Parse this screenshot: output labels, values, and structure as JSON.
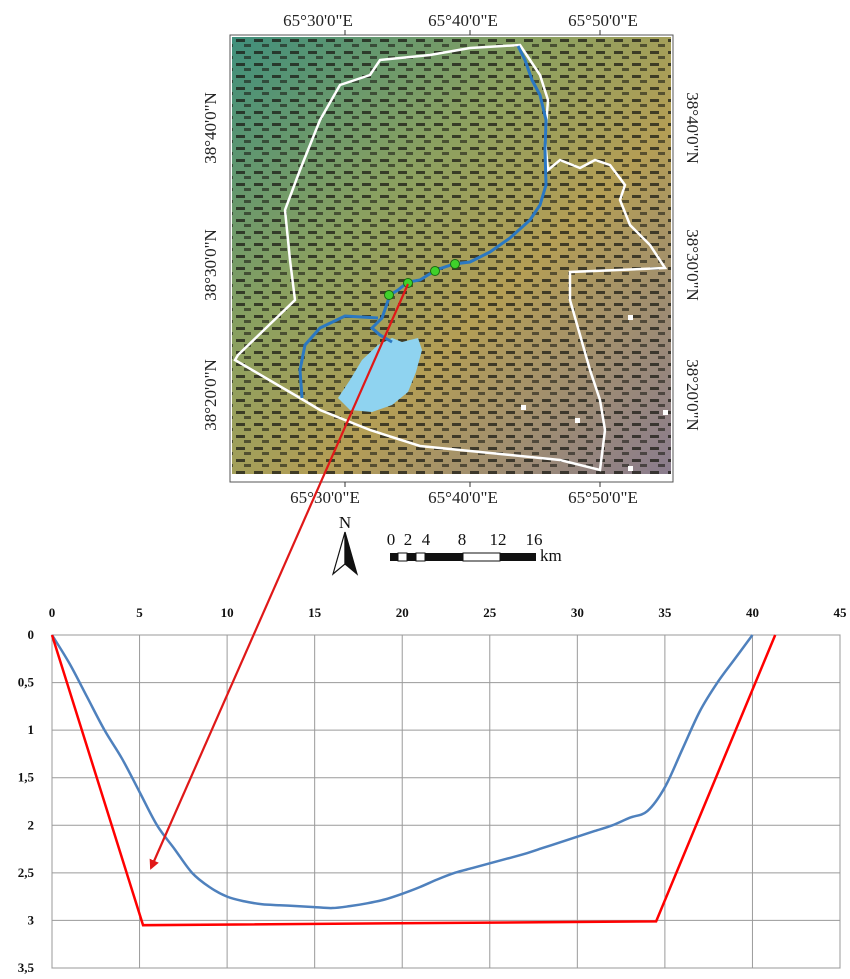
{
  "map": {
    "top_lon_labels": [
      "65°30'0\"E",
      "65°40'0\"E",
      "65°50'0\"E"
    ],
    "bottom_lon_labels": [
      "65°30'0\"E",
      "65°40'0\"E",
      "65°50'0\"E"
    ],
    "left_lat_labels": [
      "38°40'0\"N",
      "38°30'0\"N",
      "38°20'0\"N"
    ],
    "right_lat_labels": [
      "38°40'0\"N",
      "38°30'0\"N",
      "38°20'0\"N"
    ],
    "north_label": "N",
    "scale_ticks": [
      "0",
      "2",
      "4",
      "8",
      "12",
      "16"
    ],
    "scale_unit": "km",
    "colors": {
      "basin_boundary": "#ffffff",
      "river": "#2b78c2",
      "reservoir": "#8fd3f0",
      "points": "#3fd12a",
      "arrow": "#e01818"
    }
  },
  "chart_data": {
    "type": "line",
    "x_ticks": [
      "0",
      "5",
      "10",
      "15",
      "20",
      "25",
      "30",
      "35",
      "40",
      "45"
    ],
    "y_ticks": [
      "0",
      "0,5",
      "1",
      "1,5",
      "2",
      "2,5",
      "3",
      "3,5"
    ],
    "xlim": [
      0,
      45
    ],
    "ylim": [
      0,
      3.5
    ],
    "y_inverted": true,
    "x_axis_position": "top",
    "grid": true,
    "series": [
      {
        "color": "#4f81bd",
        "x": [
          0,
          1,
          2,
          3,
          4,
          5,
          6,
          7,
          8,
          9,
          10,
          11,
          12,
          13,
          14,
          15,
          16,
          17,
          18,
          19,
          20,
          21,
          22,
          23,
          24,
          25,
          26,
          27,
          28,
          29,
          30,
          31,
          32,
          33,
          34,
          35,
          36,
          37,
          38,
          39,
          40
        ],
        "y": [
          0,
          0.3,
          0.65,
          1.0,
          1.3,
          1.65,
          2.0,
          2.25,
          2.5,
          2.65,
          2.75,
          2.8,
          2.83,
          2.84,
          2.85,
          2.86,
          2.87,
          2.85,
          2.82,
          2.78,
          2.72,
          2.65,
          2.57,
          2.5,
          2.45,
          2.4,
          2.35,
          2.3,
          2.24,
          2.18,
          2.12,
          2.06,
          2.0,
          1.92,
          1.85,
          1.6,
          1.2,
          0.8,
          0.5,
          0.25,
          0
        ]
      },
      {
        "color": "#ff0000",
        "x": [
          0,
          5.2,
          34.5,
          41.3
        ],
        "y": [
          0,
          3.05,
          3.01,
          0
        ]
      }
    ]
  }
}
